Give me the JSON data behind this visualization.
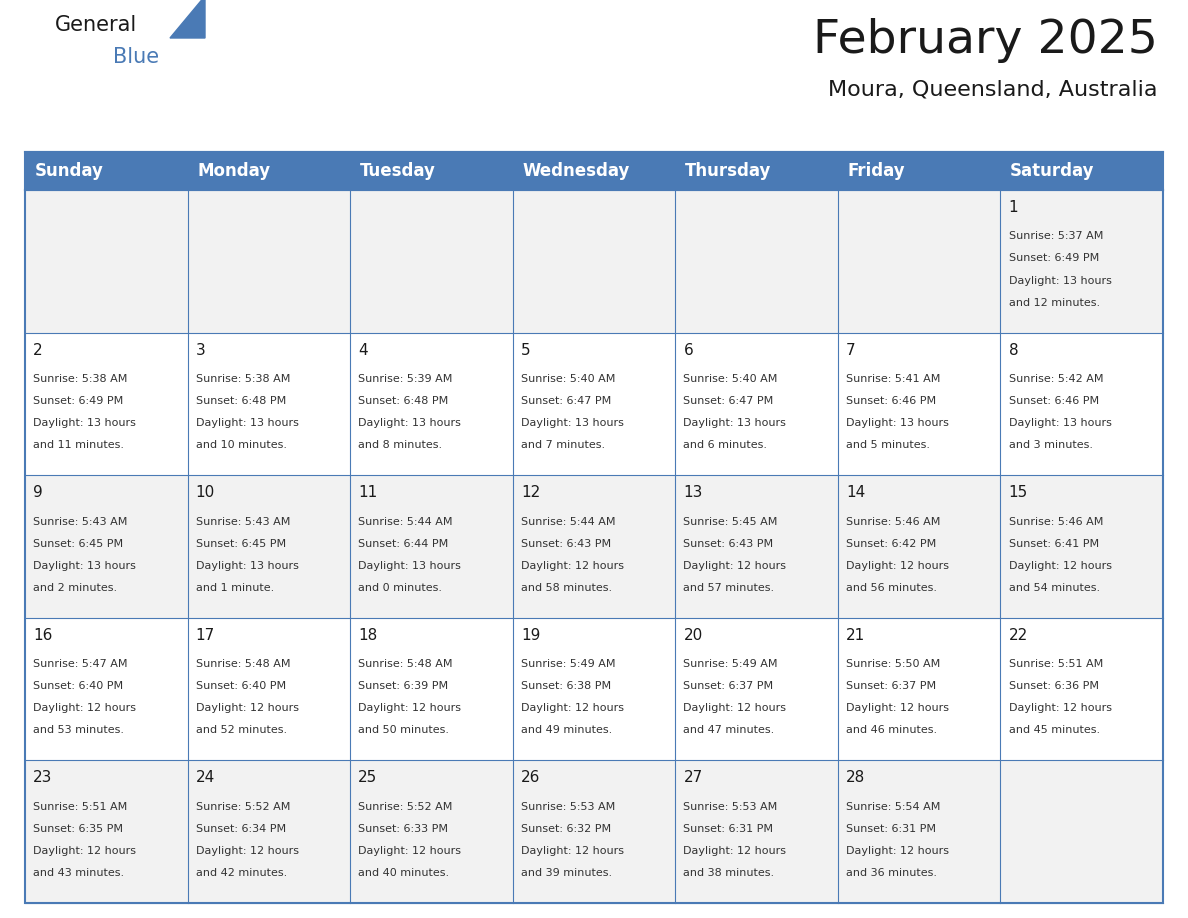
{
  "title": "February 2025",
  "subtitle": "Moura, Queensland, Australia",
  "header_bg": "#4a7ab5",
  "header_text_color": "#FFFFFF",
  "cell_bg_odd": "#F2F2F2",
  "cell_bg_even": "#FFFFFF",
  "border_color": "#4a7ab5",
  "text_color": "#333333",
  "day_num_color": "#1a1a1a",
  "day_headers": [
    "Sunday",
    "Monday",
    "Tuesday",
    "Wednesday",
    "Thursday",
    "Friday",
    "Saturday"
  ],
  "days": [
    {
      "day": 1,
      "col": 6,
      "row": 0,
      "sunrise": "5:37 AM",
      "sunset": "6:49 PM",
      "daylight_h": "13 hours",
      "daylight_m": "and 12 minutes."
    },
    {
      "day": 2,
      "col": 0,
      "row": 1,
      "sunrise": "5:38 AM",
      "sunset": "6:49 PM",
      "daylight_h": "13 hours",
      "daylight_m": "and 11 minutes."
    },
    {
      "day": 3,
      "col": 1,
      "row": 1,
      "sunrise": "5:38 AM",
      "sunset": "6:48 PM",
      "daylight_h": "13 hours",
      "daylight_m": "and 10 minutes."
    },
    {
      "day": 4,
      "col": 2,
      "row": 1,
      "sunrise": "5:39 AM",
      "sunset": "6:48 PM",
      "daylight_h": "13 hours",
      "daylight_m": "and 8 minutes."
    },
    {
      "day": 5,
      "col": 3,
      "row": 1,
      "sunrise": "5:40 AM",
      "sunset": "6:47 PM",
      "daylight_h": "13 hours",
      "daylight_m": "and 7 minutes."
    },
    {
      "day": 6,
      "col": 4,
      "row": 1,
      "sunrise": "5:40 AM",
      "sunset": "6:47 PM",
      "daylight_h": "13 hours",
      "daylight_m": "and 6 minutes."
    },
    {
      "day": 7,
      "col": 5,
      "row": 1,
      "sunrise": "5:41 AM",
      "sunset": "6:46 PM",
      "daylight_h": "13 hours",
      "daylight_m": "and 5 minutes."
    },
    {
      "day": 8,
      "col": 6,
      "row": 1,
      "sunrise": "5:42 AM",
      "sunset": "6:46 PM",
      "daylight_h": "13 hours",
      "daylight_m": "and 3 minutes."
    },
    {
      "day": 9,
      "col": 0,
      "row": 2,
      "sunrise": "5:43 AM",
      "sunset": "6:45 PM",
      "daylight_h": "13 hours",
      "daylight_m": "and 2 minutes."
    },
    {
      "day": 10,
      "col": 1,
      "row": 2,
      "sunrise": "5:43 AM",
      "sunset": "6:45 PM",
      "daylight_h": "13 hours",
      "daylight_m": "and 1 minute."
    },
    {
      "day": 11,
      "col": 2,
      "row": 2,
      "sunrise": "5:44 AM",
      "sunset": "6:44 PM",
      "daylight_h": "13 hours",
      "daylight_m": "and 0 minutes."
    },
    {
      "day": 12,
      "col": 3,
      "row": 2,
      "sunrise": "5:44 AM",
      "sunset": "6:43 PM",
      "daylight_h": "12 hours",
      "daylight_m": "and 58 minutes."
    },
    {
      "day": 13,
      "col": 4,
      "row": 2,
      "sunrise": "5:45 AM",
      "sunset": "6:43 PM",
      "daylight_h": "12 hours",
      "daylight_m": "and 57 minutes."
    },
    {
      "day": 14,
      "col": 5,
      "row": 2,
      "sunrise": "5:46 AM",
      "sunset": "6:42 PM",
      "daylight_h": "12 hours",
      "daylight_m": "and 56 minutes."
    },
    {
      "day": 15,
      "col": 6,
      "row": 2,
      "sunrise": "5:46 AM",
      "sunset": "6:41 PM",
      "daylight_h": "12 hours",
      "daylight_m": "and 54 minutes."
    },
    {
      "day": 16,
      "col": 0,
      "row": 3,
      "sunrise": "5:47 AM",
      "sunset": "6:40 PM",
      "daylight_h": "12 hours",
      "daylight_m": "and 53 minutes."
    },
    {
      "day": 17,
      "col": 1,
      "row": 3,
      "sunrise": "5:48 AM",
      "sunset": "6:40 PM",
      "daylight_h": "12 hours",
      "daylight_m": "and 52 minutes."
    },
    {
      "day": 18,
      "col": 2,
      "row": 3,
      "sunrise": "5:48 AM",
      "sunset": "6:39 PM",
      "daylight_h": "12 hours",
      "daylight_m": "and 50 minutes."
    },
    {
      "day": 19,
      "col": 3,
      "row": 3,
      "sunrise": "5:49 AM",
      "sunset": "6:38 PM",
      "daylight_h": "12 hours",
      "daylight_m": "and 49 minutes."
    },
    {
      "day": 20,
      "col": 4,
      "row": 3,
      "sunrise": "5:49 AM",
      "sunset": "6:37 PM",
      "daylight_h": "12 hours",
      "daylight_m": "and 47 minutes."
    },
    {
      "day": 21,
      "col": 5,
      "row": 3,
      "sunrise": "5:50 AM",
      "sunset": "6:37 PM",
      "daylight_h": "12 hours",
      "daylight_m": "and 46 minutes."
    },
    {
      "day": 22,
      "col": 6,
      "row": 3,
      "sunrise": "5:51 AM",
      "sunset": "6:36 PM",
      "daylight_h": "12 hours",
      "daylight_m": "and 45 minutes."
    },
    {
      "day": 23,
      "col": 0,
      "row": 4,
      "sunrise": "5:51 AM",
      "sunset": "6:35 PM",
      "daylight_h": "12 hours",
      "daylight_m": "and 43 minutes."
    },
    {
      "day": 24,
      "col": 1,
      "row": 4,
      "sunrise": "5:52 AM",
      "sunset": "6:34 PM",
      "daylight_h": "12 hours",
      "daylight_m": "and 42 minutes."
    },
    {
      "day": 25,
      "col": 2,
      "row": 4,
      "sunrise": "5:52 AM",
      "sunset": "6:33 PM",
      "daylight_h": "12 hours",
      "daylight_m": "and 40 minutes."
    },
    {
      "day": 26,
      "col": 3,
      "row": 4,
      "sunrise": "5:53 AM",
      "sunset": "6:32 PM",
      "daylight_h": "12 hours",
      "daylight_m": "and 39 minutes."
    },
    {
      "day": 27,
      "col": 4,
      "row": 4,
      "sunrise": "5:53 AM",
      "sunset": "6:31 PM",
      "daylight_h": "12 hours",
      "daylight_m": "and 38 minutes."
    },
    {
      "day": 28,
      "col": 5,
      "row": 4,
      "sunrise": "5:54 AM",
      "sunset": "6:31 PM",
      "daylight_h": "12 hours",
      "daylight_m": "and 36 minutes."
    }
  ],
  "num_rows": 5,
  "num_cols": 7,
  "logo_text_general": "General",
  "logo_text_blue": "Blue",
  "logo_triangle_color": "#4a7ab5",
  "title_fontsize": 34,
  "subtitle_fontsize": 16,
  "header_fontsize": 12,
  "day_num_fontsize": 11,
  "cell_text_fontsize": 8
}
